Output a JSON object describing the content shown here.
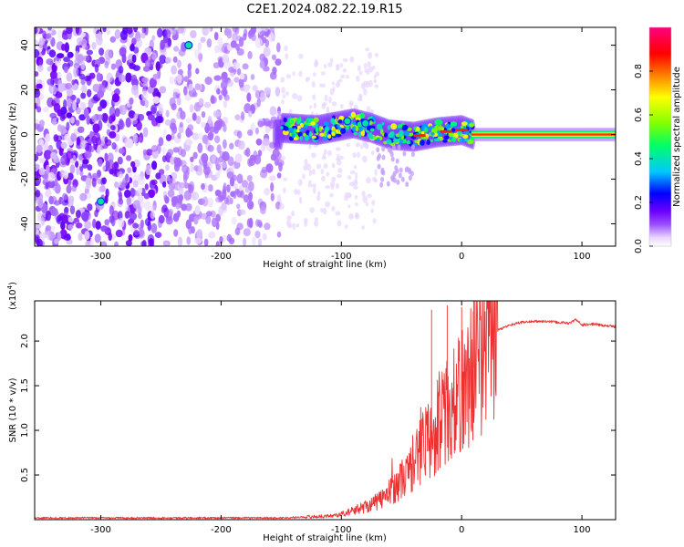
{
  "title": "C2E1.2024.082.22.19.R15",
  "chart_data": [
    {
      "type": "heatmap",
      "xlabel": "Height of straight line (km)",
      "ylabel": "Frequency (Hz)",
      "xlim": [
        -355,
        128
      ],
      "ylim": [
        -50,
        48
      ],
      "xticks": [
        -300,
        -200,
        -100,
        0,
        100
      ],
      "xtick_labels": [
        "-300",
        "-200",
        "-100",
        "0",
        "100"
      ],
      "yticks": [
        -40,
        -20,
        0,
        20,
        40
      ],
      "ytick_labels": [
        "-40",
        "-20",
        "0",
        "20",
        "40"
      ],
      "colorbar": {
        "label": "Normalized spectral amplitude",
        "range": [
          0,
          1
        ],
        "ticks": [
          0.0,
          0.2,
          0.4,
          0.6,
          0.8
        ],
        "tick_labels": [
          "0.0",
          "0.2",
          "0.4",
          "0.6",
          "0.8"
        ],
        "colors": [
          "#ffffff",
          "#e0c8ff",
          "#9b4dff",
          "#6a00ff",
          "#0000ff",
          "#00c8ff",
          "#00ff66",
          "#80ff00",
          "#ffff00",
          "#ff8000",
          "#ff0000",
          "#ff0080"
        ]
      },
      "features": {
        "noise_region_x": [
          -355,
          -150
        ],
        "signal_trace": [
          {
            "x": -150,
            "y": 3
          },
          {
            "x": -120,
            "y": 2
          },
          {
            "x": -90,
            "y": 5
          },
          {
            "x": -75,
            "y": 3
          },
          {
            "x": -60,
            "y": 0
          },
          {
            "x": -40,
            "y": -1
          },
          {
            "x": -20,
            "y": 1
          },
          {
            "x": 0,
            "y": 2
          },
          {
            "x": 10,
            "y": 0
          },
          {
            "x": 128,
            "y": 0
          }
        ],
        "bright_spots": [
          {
            "x": -227,
            "y": 40
          },
          {
            "x": -300,
            "y": -30
          },
          {
            "x": -80,
            "y": 5
          },
          {
            "x": -95,
            "y": 6
          }
        ]
      },
      "grid": false
    },
    {
      "type": "line",
      "xlabel": "Height of straight line (km)",
      "ylabel": "SNR (10 * v/v)",
      "multiplier": "(x10",
      "multiplier_exp": "4",
      "multiplier_close": ")",
      "xlim": [
        -355,
        128
      ],
      "ylim": [
        0,
        2.45
      ],
      "xticks": [
        -300,
        -200,
        -100,
        0,
        100
      ],
      "xtick_labels": [
        "-300",
        "-200",
        "-100",
        "0",
        "100"
      ],
      "yticks": [
        0.5,
        1.0,
        1.5,
        2.0
      ],
      "ytick_labels": [
        "0.5",
        "1.0",
        "1.5",
        "2.0"
      ],
      "color": "#ee3030",
      "grid": false,
      "series": [
        {
          "x": [
            -355,
            -300,
            -250,
            -200,
            -150,
            -130,
            -110,
            -100,
            -90,
            -80,
            -70,
            -60,
            -50,
            -40,
            -35,
            -30,
            -25,
            -20,
            -15,
            -10,
            -5,
            0,
            5,
            10,
            15,
            20,
            25,
            30,
            40,
            50,
            60,
            70,
            80,
            90,
            95,
            100,
            110,
            120,
            128
          ],
          "y": [
            0.02,
            0.02,
            0.02,
            0.02,
            0.02,
            0.03,
            0.04,
            0.06,
            0.1,
            0.15,
            0.2,
            0.3,
            0.45,
            0.6,
            0.75,
            0.95,
            0.85,
            1.05,
            1.15,
            1.25,
            1.3,
            1.45,
            1.55,
            1.7,
            1.85,
            1.95,
            2.05,
            2.12,
            2.18,
            2.21,
            2.22,
            2.22,
            2.21,
            2.2,
            2.24,
            2.18,
            2.19,
            2.17,
            2.16
          ]
        }
      ]
    }
  ]
}
